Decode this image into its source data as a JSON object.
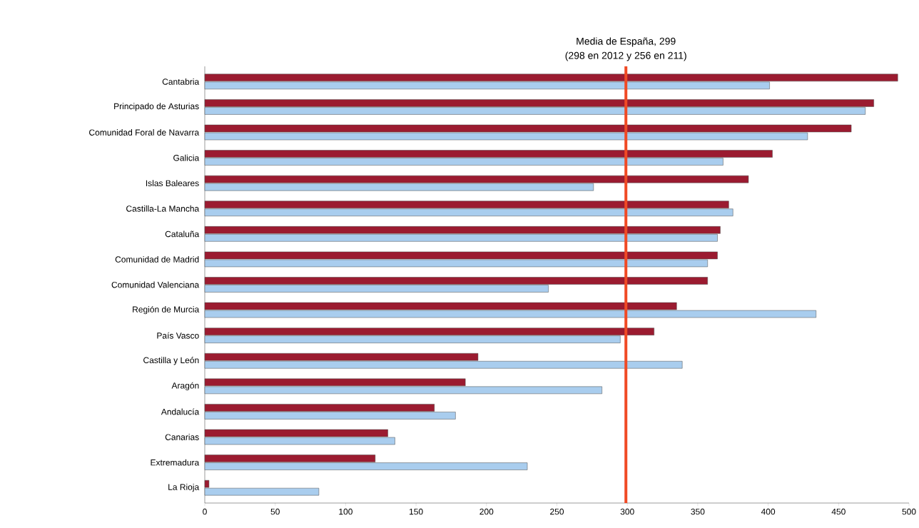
{
  "chart_data": {
    "type": "bar",
    "orientation": "horizontal",
    "categories": [
      "Cantabria",
      "Principado de Asturias",
      "Comunidad Foral de Navarra",
      "Galicia",
      "Islas Baleares",
      "Castilla-La Mancha",
      "Cataluña",
      "Comunidad de Madrid",
      "Comunidad Valenciana",
      "Región de Murcia",
      "País Vasco",
      "Castilla y León",
      "Aragón",
      "Andalucía",
      "Canarias",
      "Extremadura",
      "La Rioja"
    ],
    "series": [
      {
        "color": "#9b1b30",
        "values": [
          492,
          475,
          459,
          403,
          386,
          372,
          366,
          364,
          357,
          335,
          319,
          194,
          185,
          163,
          130,
          121,
          3
        ]
      },
      {
        "color": "#a9cdee",
        "values": [
          401,
          469,
          428,
          368,
          276,
          375,
          364,
          357,
          244,
          434,
          295,
          339,
          282,
          178,
          135,
          229,
          81
        ]
      }
    ],
    "xlim": [
      0,
      500
    ],
    "xticks": [
      0,
      50,
      100,
      150,
      200,
      250,
      300,
      350,
      400,
      450,
      500
    ],
    "ref_lines": [
      {
        "axis": "x",
        "value": 299,
        "label": "Media de España, 299",
        "color": "#f04a25"
      }
    ],
    "annotations": [
      "(298 en 2012 y 256 en 211)"
    ],
    "grid": false
  }
}
